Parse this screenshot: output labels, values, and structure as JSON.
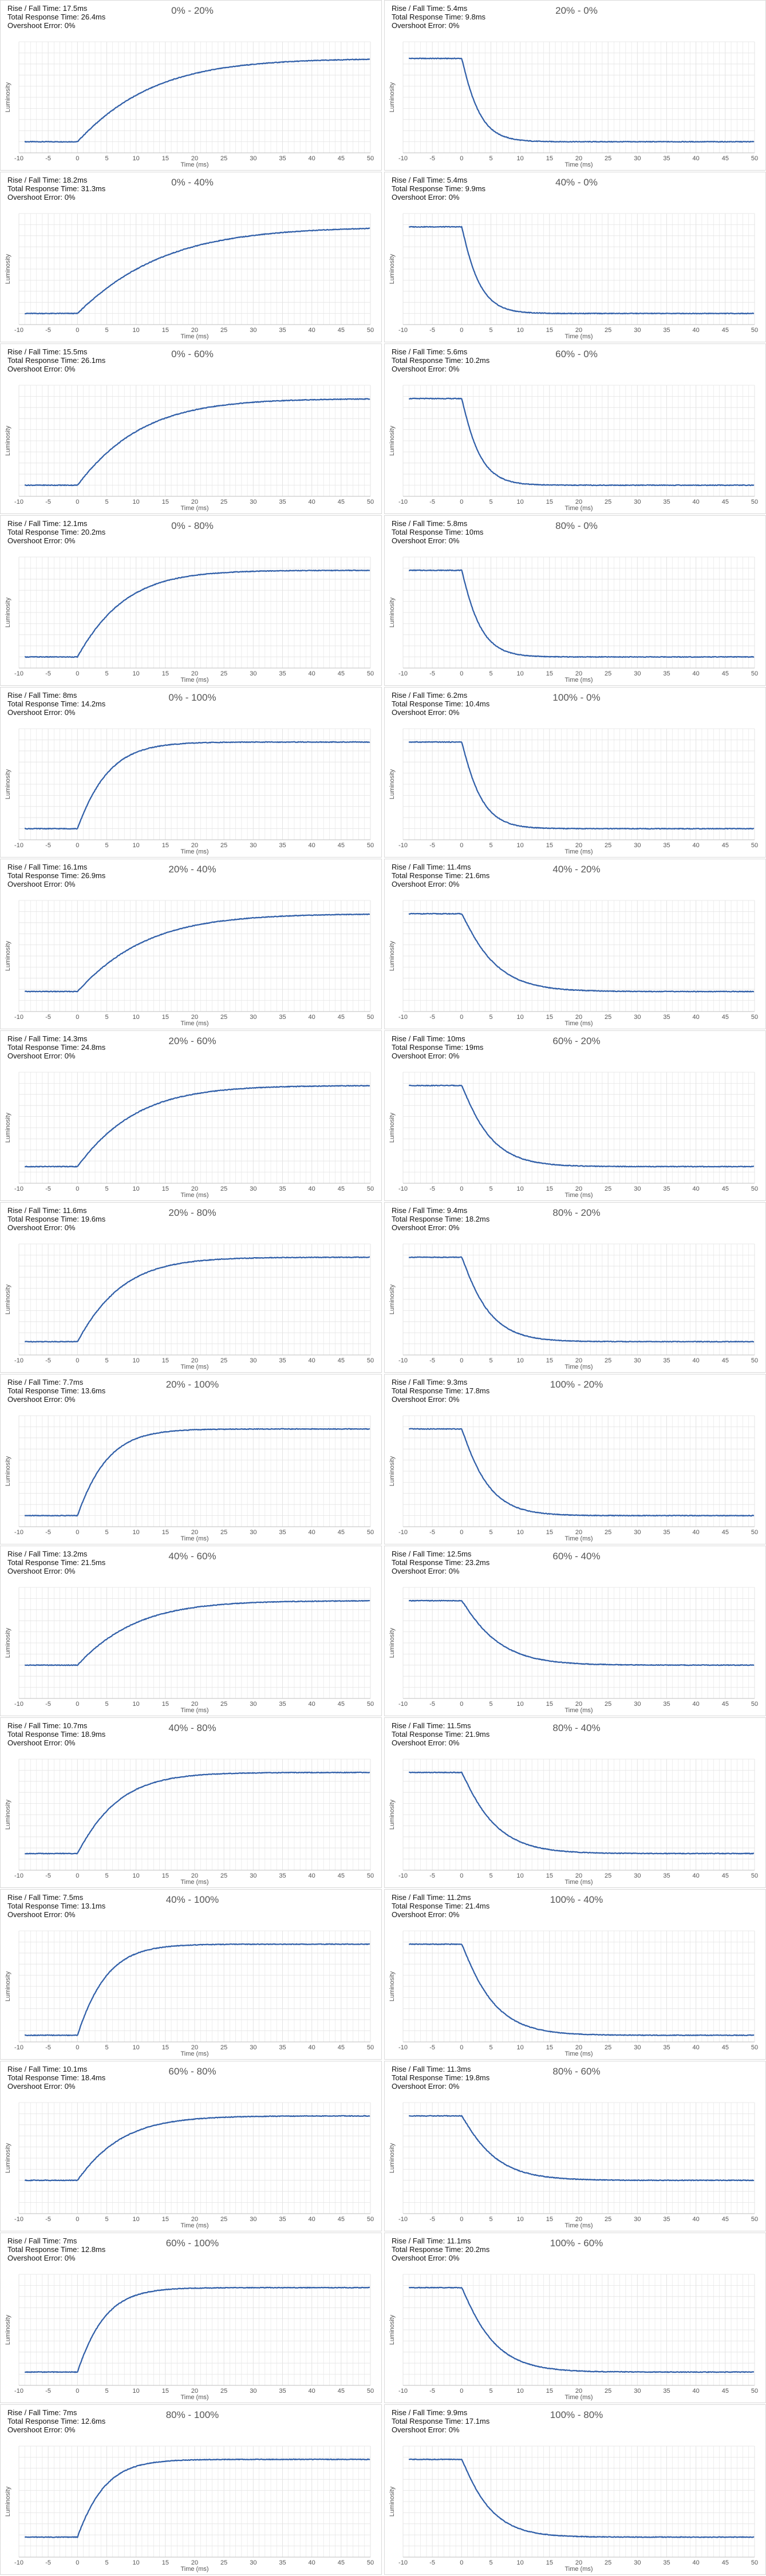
{
  "labels": {
    "rise_prefix": "Rise / Fall Time: ",
    "total_prefix": "Total Response Time: ",
    "overshoot_prefix": "Overshoot Error: "
  },
  "chart_data": [
    {
      "type": "line",
      "title": "0% - 20%",
      "direction": "rise",
      "rise_fall_time": "17.5ms",
      "total_response_time": "26.4ms",
      "overshoot_error": "0%",
      "xlabel": "Time (ms)",
      "ylabel": "Luminosity",
      "xlim": [
        -10,
        50
      ],
      "xticks": [
        -10,
        -5,
        0,
        5,
        10,
        15,
        20,
        25,
        30,
        35,
        40,
        45,
        50
      ],
      "y_start": 0.1,
      "y_end": 0.85,
      "time_constant_ms": 8.8,
      "grid": true
    },
    {
      "type": "line",
      "title": "20% - 0%",
      "direction": "fall",
      "rise_fall_time": "5.4ms",
      "total_response_time": "9.8ms",
      "overshoot_error": "0%",
      "xlabel": "Time (ms)",
      "ylabel": "Luminosity",
      "xlim": [
        -10,
        50
      ],
      "xticks": [
        -10,
        -5,
        0,
        5,
        10,
        15,
        20,
        25,
        30,
        35,
        40,
        45,
        50
      ],
      "y_start": 0.85,
      "y_end": 0.1,
      "time_constant_ms": 3.2,
      "grid": true
    },
    {
      "type": "line",
      "title": "0% - 40%",
      "direction": "rise",
      "rise_fall_time": "18.2ms",
      "total_response_time": "31.3ms",
      "overshoot_error": "0%",
      "xlabel": "Time (ms)",
      "ylabel": "Luminosity",
      "xlim": [
        -10,
        50
      ],
      "xticks": [
        -10,
        -5,
        0,
        5,
        10,
        15,
        20,
        25,
        30,
        35,
        40,
        45,
        50
      ],
      "y_start": 0.1,
      "y_end": 0.88,
      "time_constant_ms": 10.0,
      "grid": true
    },
    {
      "type": "line",
      "title": "40% - 0%",
      "direction": "fall",
      "rise_fall_time": "5.4ms",
      "total_response_time": "9.9ms",
      "overshoot_error": "0%",
      "xlabel": "Time (ms)",
      "ylabel": "Luminosity",
      "xlim": [
        -10,
        50
      ],
      "xticks": [
        -10,
        -5,
        0,
        5,
        10,
        15,
        20,
        25,
        30,
        35,
        40,
        45,
        50
      ],
      "y_start": 0.88,
      "y_end": 0.1,
      "time_constant_ms": 3.2,
      "grid": true
    },
    {
      "type": "line",
      "title": "0% - 60%",
      "direction": "rise",
      "rise_fall_time": "15.5ms",
      "total_response_time": "26.1ms",
      "overshoot_error": "0%",
      "xlabel": "Time (ms)",
      "ylabel": "Luminosity",
      "xlim": [
        -10,
        50
      ],
      "xticks": [
        -10,
        -5,
        0,
        5,
        10,
        15,
        20,
        25,
        30,
        35,
        40,
        45,
        50
      ],
      "y_start": 0.1,
      "y_end": 0.88,
      "time_constant_ms": 7.5,
      "grid": true
    },
    {
      "type": "line",
      "title": "60% - 0%",
      "direction": "fall",
      "rise_fall_time": "5.6ms",
      "total_response_time": "10.2ms",
      "overshoot_error": "0%",
      "xlabel": "Time (ms)",
      "ylabel": "Luminosity",
      "xlim": [
        -10,
        50
      ],
      "xticks": [
        -10,
        -5,
        0,
        5,
        10,
        15,
        20,
        25,
        30,
        35,
        40,
        45,
        50
      ],
      "y_start": 0.88,
      "y_end": 0.1,
      "time_constant_ms": 3.3,
      "grid": true
    },
    {
      "type": "line",
      "title": "0% - 80%",
      "direction": "rise",
      "rise_fall_time": "12.1ms",
      "total_response_time": "20.2ms",
      "overshoot_error": "0%",
      "xlabel": "Time (ms)",
      "ylabel": "Luminosity",
      "xlim": [
        -10,
        50
      ],
      "xticks": [
        -10,
        -5,
        0,
        5,
        10,
        15,
        20,
        25,
        30,
        35,
        40,
        45,
        50
      ],
      "y_start": 0.1,
      "y_end": 0.88,
      "time_constant_ms": 5.5,
      "grid": true
    },
    {
      "type": "line",
      "title": "80% - 0%",
      "direction": "fall",
      "rise_fall_time": "5.8ms",
      "total_response_time": "10ms",
      "overshoot_error": "0%",
      "xlabel": "Time (ms)",
      "ylabel": "Luminosity",
      "xlim": [
        -10,
        50
      ],
      "xticks": [
        -10,
        -5,
        0,
        5,
        10,
        15,
        20,
        25,
        30,
        35,
        40,
        45,
        50
      ],
      "y_start": 0.88,
      "y_end": 0.1,
      "time_constant_ms": 3.4,
      "grid": true
    },
    {
      "type": "line",
      "title": "0% - 100%",
      "direction": "rise",
      "rise_fall_time": "8ms",
      "total_response_time": "14.2ms",
      "overshoot_error": "0%",
      "xlabel": "Time (ms)",
      "ylabel": "Luminosity",
      "xlim": [
        -10,
        50
      ],
      "xticks": [
        -10,
        -5,
        0,
        5,
        10,
        15,
        20,
        25,
        30,
        35,
        40,
        45,
        50
      ],
      "y_start": 0.1,
      "y_end": 0.88,
      "time_constant_ms": 3.6,
      "grid": true
    },
    {
      "type": "line",
      "title": "100% - 0%",
      "direction": "fall",
      "rise_fall_time": "6.2ms",
      "total_response_time": "10.4ms",
      "overshoot_error": "0%",
      "xlabel": "Time (ms)",
      "ylabel": "Luminosity",
      "xlim": [
        -10,
        50
      ],
      "xticks": [
        -10,
        -5,
        0,
        5,
        10,
        15,
        20,
        25,
        30,
        35,
        40,
        45,
        50
      ],
      "y_start": 0.88,
      "y_end": 0.1,
      "time_constant_ms": 3.6,
      "grid": true
    },
    {
      "type": "line",
      "title": "20% - 40%",
      "direction": "rise",
      "rise_fall_time": "16.1ms",
      "total_response_time": "26.9ms",
      "overshoot_error": "0%",
      "xlabel": "Time (ms)",
      "ylabel": "Luminosity",
      "xlim": [
        -10,
        50
      ],
      "xticks": [
        -10,
        -5,
        0,
        5,
        10,
        15,
        20,
        25,
        30,
        35,
        40,
        45,
        50
      ],
      "y_start": 0.18,
      "y_end": 0.88,
      "time_constant_ms": 8.0,
      "grid": true
    },
    {
      "type": "line",
      "title": "40% - 20%",
      "direction": "fall",
      "rise_fall_time": "11.4ms",
      "total_response_time": "21.6ms",
      "overshoot_error": "0%",
      "xlabel": "Time (ms)",
      "ylabel": "Luminosity",
      "xlim": [
        -10,
        50
      ],
      "xticks": [
        -10,
        -5,
        0,
        5,
        10,
        15,
        20,
        25,
        30,
        35,
        40,
        45,
        50
      ],
      "y_start": 0.88,
      "y_end": 0.18,
      "time_constant_ms": 6.5,
      "grid": true
    },
    {
      "type": "line",
      "title": "20% - 60%",
      "direction": "rise",
      "rise_fall_time": "14.3ms",
      "total_response_time": "24.8ms",
      "overshoot_error": "0%",
      "xlabel": "Time (ms)",
      "ylabel": "Luminosity",
      "xlim": [
        -10,
        50
      ],
      "xticks": [
        -10,
        -5,
        0,
        5,
        10,
        15,
        20,
        25,
        30,
        35,
        40,
        45,
        50
      ],
      "y_start": 0.15,
      "y_end": 0.88,
      "time_constant_ms": 6.8,
      "grid": true
    },
    {
      "type": "line",
      "title": "60% - 20%",
      "direction": "fall",
      "rise_fall_time": "10ms",
      "total_response_time": "19ms",
      "overshoot_error": "0%",
      "xlabel": "Time (ms)",
      "ylabel": "Luminosity",
      "xlim": [
        -10,
        50
      ],
      "xticks": [
        -10,
        -5,
        0,
        5,
        10,
        15,
        20,
        25,
        30,
        35,
        40,
        45,
        50
      ],
      "y_start": 0.88,
      "y_end": 0.15,
      "time_constant_ms": 5.6,
      "grid": true
    },
    {
      "type": "line",
      "title": "20% - 80%",
      "direction": "rise",
      "rise_fall_time": "11.6ms",
      "total_response_time": "19.6ms",
      "overshoot_error": "0%",
      "xlabel": "Time (ms)",
      "ylabel": "Luminosity",
      "xlim": [
        -10,
        50
      ],
      "xticks": [
        -10,
        -5,
        0,
        5,
        10,
        15,
        20,
        25,
        30,
        35,
        40,
        45,
        50
      ],
      "y_start": 0.12,
      "y_end": 0.88,
      "time_constant_ms": 5.2,
      "grid": true
    },
    {
      "type": "line",
      "title": "80% - 20%",
      "direction": "fall",
      "rise_fall_time": "9.4ms",
      "total_response_time": "18.2ms",
      "overshoot_error": "0%",
      "xlabel": "Time (ms)",
      "ylabel": "Luminosity",
      "xlim": [
        -10,
        50
      ],
      "xticks": [
        -10,
        -5,
        0,
        5,
        10,
        15,
        20,
        25,
        30,
        35,
        40,
        45,
        50
      ],
      "y_start": 0.88,
      "y_end": 0.12,
      "time_constant_ms": 5.2,
      "grid": true
    },
    {
      "type": "line",
      "title": "20% - 100%",
      "direction": "rise",
      "rise_fall_time": "7.7ms",
      "total_response_time": "13.6ms",
      "overshoot_error": "0%",
      "xlabel": "Time (ms)",
      "ylabel": "Luminosity",
      "xlim": [
        -10,
        50
      ],
      "xticks": [
        -10,
        -5,
        0,
        5,
        10,
        15,
        20,
        25,
        30,
        35,
        40,
        45,
        50
      ],
      "y_start": 0.1,
      "y_end": 0.88,
      "time_constant_ms": 3.5,
      "grid": true
    },
    {
      "type": "line",
      "title": "100% - 20%",
      "direction": "fall",
      "rise_fall_time": "9.3ms",
      "total_response_time": "17.8ms",
      "overshoot_error": "0%",
      "xlabel": "Time (ms)",
      "ylabel": "Luminosity",
      "xlim": [
        -10,
        50
      ],
      "xticks": [
        -10,
        -5,
        0,
        5,
        10,
        15,
        20,
        25,
        30,
        35,
        40,
        45,
        50
      ],
      "y_start": 0.88,
      "y_end": 0.1,
      "time_constant_ms": 5.0,
      "grid": true
    },
    {
      "type": "line",
      "title": "40% - 60%",
      "direction": "rise",
      "rise_fall_time": "13.2ms",
      "total_response_time": "21.5ms",
      "overshoot_error": "0%",
      "xlabel": "Time (ms)",
      "ylabel": "Luminosity",
      "xlim": [
        -10,
        50
      ],
      "xticks": [
        -10,
        -5,
        0,
        5,
        10,
        15,
        20,
        25,
        30,
        35,
        40,
        45,
        50
      ],
      "y_start": 0.3,
      "y_end": 0.88,
      "time_constant_ms": 6.8,
      "grid": true
    },
    {
      "type": "line",
      "title": "60% - 40%",
      "direction": "fall",
      "rise_fall_time": "12.5ms",
      "total_response_time": "23.2ms",
      "overshoot_error": "0%",
      "xlabel": "Time (ms)",
      "ylabel": "Luminosity",
      "xlim": [
        -10,
        50
      ],
      "xticks": [
        -10,
        -5,
        0,
        5,
        10,
        15,
        20,
        25,
        30,
        35,
        40,
        45,
        50
      ],
      "y_start": 0.88,
      "y_end": 0.3,
      "time_constant_ms": 7.2,
      "grid": true
    },
    {
      "type": "line",
      "title": "40% - 80%",
      "direction": "rise",
      "rise_fall_time": "10.7ms",
      "total_response_time": "18.9ms",
      "overshoot_error": "0%",
      "xlabel": "Time (ms)",
      "ylabel": "Luminosity",
      "xlim": [
        -10,
        50
      ],
      "xticks": [
        -10,
        -5,
        0,
        5,
        10,
        15,
        20,
        25,
        30,
        35,
        40,
        45,
        50
      ],
      "y_start": 0.15,
      "y_end": 0.88,
      "time_constant_ms": 4.8,
      "grid": true
    },
    {
      "type": "line",
      "title": "80% - 40%",
      "direction": "fall",
      "rise_fall_time": "11.5ms",
      "total_response_time": "21.9ms",
      "overshoot_error": "0%",
      "xlabel": "Time (ms)",
      "ylabel": "Luminosity",
      "xlim": [
        -10,
        50
      ],
      "xticks": [
        -10,
        -5,
        0,
        5,
        10,
        15,
        20,
        25,
        30,
        35,
        40,
        45,
        50
      ],
      "y_start": 0.88,
      "y_end": 0.15,
      "time_constant_ms": 6.5,
      "grid": true
    },
    {
      "type": "line",
      "title": "40% - 100%",
      "direction": "rise",
      "rise_fall_time": "7.5ms",
      "total_response_time": "13.1ms",
      "overshoot_error": "0%",
      "xlabel": "Time (ms)",
      "ylabel": "Luminosity",
      "xlim": [
        -10,
        50
      ],
      "xticks": [
        -10,
        -5,
        0,
        5,
        10,
        15,
        20,
        25,
        30,
        35,
        40,
        45,
        50
      ],
      "y_start": 0.06,
      "y_end": 0.88,
      "time_constant_ms": 3.4,
      "grid": true
    },
    {
      "type": "line",
      "title": "100% - 40%",
      "direction": "fall",
      "rise_fall_time": "11.2ms",
      "total_response_time": "21.4ms",
      "overshoot_error": "0%",
      "xlabel": "Time (ms)",
      "ylabel": "Luminosity",
      "xlim": [
        -10,
        50
      ],
      "xticks": [
        -10,
        -5,
        0,
        5,
        10,
        15,
        20,
        25,
        30,
        35,
        40,
        45,
        50
      ],
      "y_start": 0.88,
      "y_end": 0.06,
      "time_constant_ms": 6.2,
      "grid": true
    },
    {
      "type": "line",
      "title": "60% - 80%",
      "direction": "rise",
      "rise_fall_time": "10.1ms",
      "total_response_time": "18.4ms",
      "overshoot_error": "0%",
      "xlabel": "Time (ms)",
      "ylabel": "Luminosity",
      "xlim": [
        -10,
        50
      ],
      "xticks": [
        -10,
        -5,
        0,
        5,
        10,
        15,
        20,
        25,
        30,
        35,
        40,
        45,
        50
      ],
      "y_start": 0.3,
      "y_end": 0.88,
      "time_constant_ms": 5.2,
      "grid": true
    },
    {
      "type": "line",
      "title": "80% - 60%",
      "direction": "fall",
      "rise_fall_time": "11.3ms",
      "total_response_time": "19.8ms",
      "overshoot_error": "0%",
      "xlabel": "Time (ms)",
      "ylabel": "Luminosity",
      "xlim": [
        -10,
        50
      ],
      "xticks": [
        -10,
        -5,
        0,
        5,
        10,
        15,
        20,
        25,
        30,
        35,
        40,
        45,
        50
      ],
      "y_start": 0.88,
      "y_end": 0.3,
      "time_constant_ms": 6.5,
      "grid": true
    },
    {
      "type": "line",
      "title": "60% - 100%",
      "direction": "rise",
      "rise_fall_time": "7ms",
      "total_response_time": "12.8ms",
      "overshoot_error": "0%",
      "xlabel": "Time (ms)",
      "ylabel": "Luminosity",
      "xlim": [
        -10,
        50
      ],
      "xticks": [
        -10,
        -5,
        0,
        5,
        10,
        15,
        20,
        25,
        30,
        35,
        40,
        45,
        50
      ],
      "y_start": 0.12,
      "y_end": 0.88,
      "time_constant_ms": 3.2,
      "grid": true
    },
    {
      "type": "line",
      "title": "100% - 60%",
      "direction": "fall",
      "rise_fall_time": "11.1ms",
      "total_response_time": "20.2ms",
      "overshoot_error": "0%",
      "xlabel": "Time (ms)",
      "ylabel": "Luminosity",
      "xlim": [
        -10,
        50
      ],
      "xticks": [
        -10,
        -5,
        0,
        5,
        10,
        15,
        20,
        25,
        30,
        35,
        40,
        45,
        50
      ],
      "y_start": 0.88,
      "y_end": 0.12,
      "time_constant_ms": 6.2,
      "grid": true
    },
    {
      "type": "line",
      "title": "80% - 100%",
      "direction": "rise",
      "rise_fall_time": "7ms",
      "total_response_time": "12.6ms",
      "overshoot_error": "0%",
      "xlabel": "Time (ms)",
      "ylabel": "Luminosity",
      "xlim": [
        -10,
        50
      ],
      "xticks": [
        -10,
        -5,
        0,
        5,
        10,
        15,
        20,
        25,
        30,
        35,
        40,
        45,
        50
      ],
      "y_start": 0.18,
      "y_end": 0.88,
      "time_constant_ms": 3.2,
      "grid": true
    },
    {
      "type": "line",
      "title": "100% - 80%",
      "direction": "fall",
      "rise_fall_time": "9.9ms",
      "total_response_time": "17.1ms",
      "overshoot_error": "0%",
      "xlabel": "Time (ms)",
      "ylabel": "Luminosity",
      "xlim": [
        -10,
        50
      ],
      "xticks": [
        -10,
        -5,
        0,
        5,
        10,
        15,
        20,
        25,
        30,
        35,
        40,
        45,
        50
      ],
      "y_start": 0.88,
      "y_end": 0.18,
      "time_constant_ms": 5.6,
      "grid": true
    }
  ],
  "colors": {
    "line": "#2f5ea8",
    "grid": "#e3e3e3",
    "axis": "#bfbfbf",
    "border": "#d9d9d9"
  }
}
